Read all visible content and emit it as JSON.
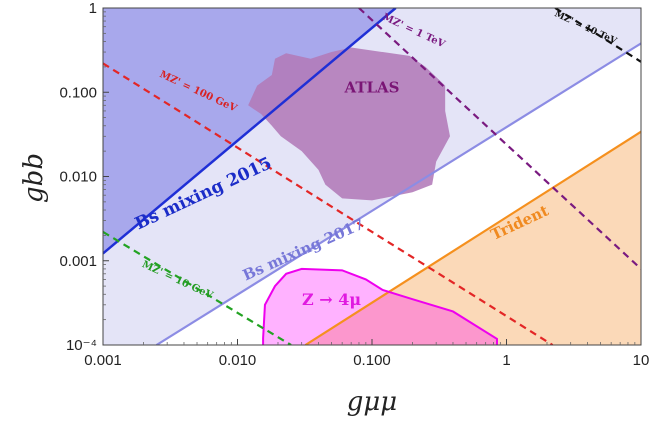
{
  "chart_data": {
    "type": "line",
    "x_scale": "log",
    "y_scale": "log",
    "xlim": [
      0.001,
      10
    ],
    "ylim": [
      0.0001,
      1
    ],
    "xlabel": "gμμ",
    "ylabel": "gbb",
    "x_ticks": [
      {
        "value": 0.001,
        "label": "0.001"
      },
      {
        "value": 0.01,
        "label": "0.010"
      },
      {
        "value": 0.1,
        "label": "0.100"
      },
      {
        "value": 1,
        "label": "1"
      },
      {
        "value": 10,
        "label": "10"
      }
    ],
    "y_ticks": [
      {
        "value": 1,
        "label": "1"
      },
      {
        "value": 0.1,
        "label": "0.100"
      },
      {
        "value": 0.01,
        "label": "0.010"
      },
      {
        "value": 0.001,
        "label": "0.001"
      },
      {
        "value": 0.0001,
        "label": "10⁻⁴"
      }
    ],
    "regions": [
      {
        "name": "Bs mixing 2017",
        "color": "#e4e4f7",
        "opacity": 1,
        "points": [
          [
            0.001,
            1
          ],
          [
            0.001,
            0.0001
          ],
          [
            0.0025,
            0.0001
          ],
          [
            10,
            0.38
          ],
          [
            10,
            1
          ]
        ]
      },
      {
        "name": "Bs mixing 2015",
        "color": "#a8a8ec",
        "opacity": 1,
        "points": [
          [
            0.001,
            1
          ],
          [
            0.001,
            0.00122
          ],
          [
            0.15,
            1
          ]
        ]
      },
      {
        "name": "Trident",
        "color": "#fbd9b8",
        "opacity": 1,
        "points": [
          [
            0.032,
            0.0001
          ],
          [
            10,
            0.034
          ],
          [
            10,
            0.0001
          ]
        ]
      },
      {
        "name": "Z → 4μ",
        "color": "#ff00ff",
        "opacity": 0.3,
        "points": [
          [
            0.0155,
            0.00012
          ],
          [
            0.016,
            0.0003
          ],
          [
            0.019,
            0.0005
          ],
          [
            0.023,
            0.0007
          ],
          [
            0.03,
            0.0008
          ],
          [
            0.06,
            0.00077
          ],
          [
            0.09,
            0.0006
          ],
          [
            0.12,
            0.00045
          ],
          [
            0.2,
            0.00035
          ],
          [
            0.4,
            0.00025
          ],
          [
            0.85,
            0.000118
          ],
          [
            0.85,
            0.0001
          ],
          [
            0.0158,
            0.0001
          ]
        ]
      },
      {
        "name": "ATLAS",
        "color": "#b27ab8",
        "opacity": 0.88,
        "points": [
          [
            0.012,
            0.07
          ],
          [
            0.014,
            0.12
          ],
          [
            0.018,
            0.16
          ],
          [
            0.019,
            0.25
          ],
          [
            0.023,
            0.29
          ],
          [
            0.035,
            0.25
          ],
          [
            0.05,
            0.3
          ],
          [
            0.07,
            0.34
          ],
          [
            0.12,
            0.3
          ],
          [
            0.19,
            0.27
          ],
          [
            0.25,
            0.2
          ],
          [
            0.35,
            0.12
          ],
          [
            0.35,
            0.06
          ],
          [
            0.38,
            0.03
          ],
          [
            0.3,
            0.015
          ],
          [
            0.28,
            0.008
          ],
          [
            0.2,
            0.0065
          ],
          [
            0.1,
            0.0052
          ],
          [
            0.06,
            0.0055
          ],
          [
            0.045,
            0.008
          ],
          [
            0.04,
            0.012
          ],
          [
            0.03,
            0.02
          ],
          [
            0.021,
            0.03
          ],
          [
            0.018,
            0.04
          ],
          [
            0.015,
            0.055
          ]
        ]
      }
    ],
    "series": [
      {
        "name": "Bs mixing 2015",
        "color": "#1f2fd6",
        "width": 2.5,
        "dash": "",
        "points": [
          [
            0.001,
            0.00122
          ],
          [
            0.15,
            1
          ]
        ]
      },
      {
        "name": "Bs mixing 2017",
        "color": "#8c8ce4",
        "width": 2.2,
        "dash": "",
        "points": [
          [
            0.0025,
            0.0001
          ],
          [
            10,
            0.38
          ]
        ]
      },
      {
        "name": "Trident",
        "color": "#f5901e",
        "width": 2.2,
        "dash": "",
        "points": [
          [
            0.032,
            0.0001
          ],
          [
            10,
            0.034
          ]
        ]
      },
      {
        "name": "Z → 4μ",
        "color": "#ee00ee",
        "width": 2,
        "dash": "",
        "points": [
          [
            0.0155,
            0.0001
          ],
          [
            0.0155,
            0.00012
          ],
          [
            0.016,
            0.0003
          ],
          [
            0.019,
            0.0005
          ],
          [
            0.023,
            0.0007
          ],
          [
            0.03,
            0.0008
          ],
          [
            0.06,
            0.00077
          ],
          [
            0.09,
            0.0006
          ],
          [
            0.12,
            0.00045
          ],
          [
            0.2,
            0.00035
          ],
          [
            0.4,
            0.00025
          ],
          [
            0.85,
            0.000118
          ],
          [
            0.85,
            0.0001
          ]
        ]
      },
      {
        "name": "MZ' = 10 GeV",
        "color": "#23a323",
        "width": 2.2,
        "dash": "7,5",
        "points": [
          [
            0.001,
            0.0022
          ],
          [
            0.025,
            0.0001
          ]
        ]
      },
      {
        "name": "MZ' = 100 GeV",
        "color": "#e32626",
        "width": 2.2,
        "dash": "7,5",
        "points": [
          [
            0.001,
            0.22
          ],
          [
            2.2,
            0.0001
          ]
        ]
      },
      {
        "name": "MZ' = 1 TeV",
        "color": "#7a1a80",
        "width": 2.2,
        "dash": "7,5",
        "points": [
          [
            0.08,
            1
          ],
          [
            10,
            0.0008
          ]
        ]
      },
      {
        "name": "MZ' = 10 TeV",
        "color": "#111111",
        "width": 2.2,
        "dash": "7,5",
        "points": [
          [
            2.3,
            1
          ],
          [
            10,
            0.23
          ]
        ]
      }
    ],
    "labels": [
      {
        "text": "ATLAS",
        "x": 0.1,
        "y": 0.1,
        "color": "#7a1575",
        "size": 15,
        "rotate": 0
      },
      {
        "text": "Bs mixing 2015",
        "x": 0.0058,
        "y": 0.0055,
        "color": "#1b2cc8",
        "size": 17,
        "rotate": -25
      },
      {
        "text": "Bs mixing 2017",
        "x": 0.032,
        "y": 0.0012,
        "color": "#7777d8",
        "size": 15,
        "rotate": -24,
        "weight": "normal"
      },
      {
        "text": "Trident",
        "x": 1.3,
        "y": 0.0025,
        "color": "#f08a20",
        "size": 15,
        "rotate": -25
      },
      {
        "text": "Z → 4μ",
        "x": 0.05,
        "y": 0.0003,
        "color": "#e01ae0",
        "size": 16,
        "rotate": 0
      },
      {
        "text": "MZ' = 10 GeV",
        "x": 0.0035,
        "y": 0.00055,
        "color": "#239b23",
        "size": 10,
        "rotate": 25
      },
      {
        "text": "MZ' = 100 GeV",
        "x": 0.005,
        "y": 0.095,
        "color": "#d82222",
        "size": 10,
        "rotate": 25
      },
      {
        "text": "MZ' = 1 TeV",
        "x": 0.2,
        "y": 0.5,
        "color": "#7a1a80",
        "size": 10,
        "rotate": 25
      },
      {
        "text": "MZ' = 10 TeV",
        "x": 3.8,
        "y": 0.55,
        "color": "#111111",
        "size": 9,
        "rotate": 25
      }
    ]
  }
}
